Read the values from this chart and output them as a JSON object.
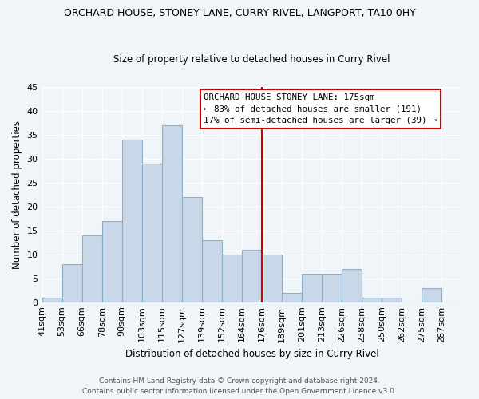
{
  "title": "ORCHARD HOUSE, STONEY LANE, CURRY RIVEL, LANGPORT, TA10 0HY",
  "subtitle": "Size of property relative to detached houses in Curry Rivel",
  "xlabel": "Distribution of detached houses by size in Curry Rivel",
  "ylabel": "Number of detached properties",
  "footer1": "Contains HM Land Registry data © Crown copyright and database right 2024.",
  "footer2": "Contains public sector information licensed under the Open Government Licence v3.0.",
  "bin_labels": [
    "41sqm",
    "53sqm",
    "66sqm",
    "78sqm",
    "90sqm",
    "103sqm",
    "115sqm",
    "127sqm",
    "139sqm",
    "152sqm",
    "164sqm",
    "176sqm",
    "189sqm",
    "201sqm",
    "213sqm",
    "226sqm",
    "238sqm",
    "250sqm",
    "262sqm",
    "275sqm",
    "287sqm"
  ],
  "bar_values": [
    1,
    8,
    14,
    17,
    34,
    29,
    37,
    22,
    13,
    10,
    11,
    10,
    2,
    6,
    6,
    7,
    1,
    1,
    0,
    3,
    0
  ],
  "bar_color": "#c8d8e8",
  "bar_edgecolor": "#8ab0cc",
  "ylim": [
    0,
    45
  ],
  "yticks": [
    0,
    5,
    10,
    15,
    20,
    25,
    30,
    35,
    40,
    45
  ],
  "property_line_bin": 11,
  "property_line_color": "#cc0000",
  "annotation_line1": "ORCHARD HOUSE STONEY LANE: 175sqm",
  "annotation_line2": "← 83% of detached houses are smaller (191)",
  "annotation_line3": "17% of semi-detached houses are larger (39) →",
  "background_color": "#f0f5fa"
}
